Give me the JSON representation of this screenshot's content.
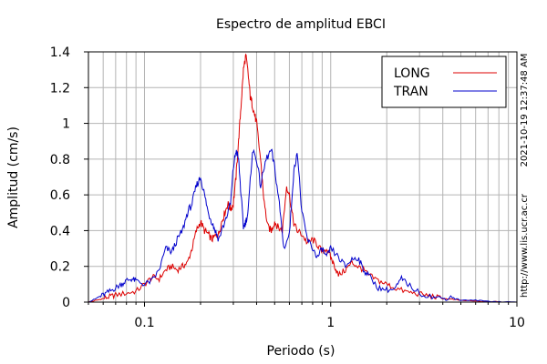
{
  "chart_data": {
    "type": "line",
    "title": "Espectro de amplitud EBCI",
    "xlabel": "Periodo (s)",
    "ylabel": "Amplitud (cm/s)",
    "x_scale": "log",
    "xlim": [
      0.05,
      10
    ],
    "ylim": [
      0,
      1.4
    ],
    "grid": true,
    "legend_position": "top-right",
    "x_tick_labels": [
      "0.1",
      "1",
      "10"
    ],
    "y_tick_labels": [
      "0",
      "0.2",
      "0.4",
      "0.6",
      "0.8",
      "1",
      "1.2",
      "1.4"
    ],
    "series": [
      {
        "name": "LONG",
        "color": "#dd0000",
        "x": [
          0.05,
          0.055,
          0.06,
          0.065,
          0.07,
          0.08,
          0.09,
          0.1,
          0.11,
          0.12,
          0.13,
          0.14,
          0.15,
          0.16,
          0.17,
          0.18,
          0.19,
          0.2,
          0.21,
          0.22,
          0.23,
          0.24,
          0.25,
          0.26,
          0.27,
          0.28,
          0.29,
          0.3,
          0.31,
          0.32,
          0.33,
          0.34,
          0.35,
          0.36,
          0.37,
          0.38,
          0.39,
          0.4,
          0.42,
          0.44,
          0.46,
          0.48,
          0.5,
          0.52,
          0.55,
          0.58,
          0.6,
          0.63,
          0.66,
          0.7,
          0.75,
          0.8,
          0.85,
          0.9,
          0.95,
          1.0,
          1.05,
          1.1,
          1.2,
          1.3,
          1.4,
          1.5,
          1.6,
          1.8,
          2.0,
          2.2,
          2.5,
          2.8,
          3.2,
          3.6,
          4.0,
          4.5,
          5.0,
          6.0,
          7.0,
          8.0,
          10.0
        ],
        "values": [
          0.0,
          0.01,
          0.02,
          0.03,
          0.04,
          0.05,
          0.06,
          0.1,
          0.14,
          0.13,
          0.18,
          0.2,
          0.18,
          0.2,
          0.22,
          0.3,
          0.4,
          0.45,
          0.4,
          0.38,
          0.35,
          0.37,
          0.38,
          0.45,
          0.5,
          0.55,
          0.52,
          0.55,
          0.7,
          0.9,
          1.1,
          1.3,
          1.38,
          1.28,
          1.15,
          1.1,
          1.05,
          1.0,
          0.8,
          0.55,
          0.42,
          0.4,
          0.45,
          0.42,
          0.4,
          0.65,
          0.6,
          0.45,
          0.4,
          0.38,
          0.33,
          0.35,
          0.32,
          0.28,
          0.3,
          0.25,
          0.2,
          0.15,
          0.18,
          0.22,
          0.2,
          0.18,
          0.15,
          0.12,
          0.1,
          0.08,
          0.06,
          0.05,
          0.04,
          0.03,
          0.02,
          0.015,
          0.01,
          0.005,
          0.003,
          0.002,
          0.0
        ]
      },
      {
        "name": "TRAN",
        "color": "#0000cc",
        "x": [
          0.05,
          0.055,
          0.06,
          0.065,
          0.07,
          0.075,
          0.08,
          0.085,
          0.09,
          0.1,
          0.11,
          0.12,
          0.13,
          0.14,
          0.15,
          0.16,
          0.17,
          0.18,
          0.19,
          0.2,
          0.21,
          0.22,
          0.23,
          0.24,
          0.25,
          0.27,
          0.29,
          0.3,
          0.31,
          0.32,
          0.33,
          0.34,
          0.35,
          0.36,
          0.38,
          0.4,
          0.42,
          0.45,
          0.48,
          0.5,
          0.53,
          0.56,
          0.6,
          0.63,
          0.66,
          0.7,
          0.75,
          0.8,
          0.85,
          0.9,
          0.95,
          1.0,
          1.1,
          1.2,
          1.3,
          1.4,
          1.5,
          1.6,
          1.8,
          2.0,
          2.2,
          2.4,
          2.6,
          3.0,
          3.5,
          4.0,
          4.5,
          5.0,
          6.0,
          7.0,
          8.0,
          10.0
        ],
        "values": [
          0.0,
          0.02,
          0.04,
          0.06,
          0.08,
          0.1,
          0.12,
          0.13,
          0.12,
          0.1,
          0.12,
          0.18,
          0.3,
          0.28,
          0.35,
          0.4,
          0.5,
          0.55,
          0.65,
          0.7,
          0.6,
          0.5,
          0.45,
          0.4,
          0.35,
          0.45,
          0.55,
          0.75,
          0.85,
          0.8,
          0.6,
          0.42,
          0.45,
          0.5,
          0.85,
          0.8,
          0.65,
          0.8,
          0.85,
          0.75,
          0.55,
          0.3,
          0.38,
          0.7,
          0.85,
          0.5,
          0.35,
          0.3,
          0.25,
          0.3,
          0.25,
          0.3,
          0.25,
          0.2,
          0.24,
          0.25,
          0.18,
          0.15,
          0.08,
          0.07,
          0.07,
          0.13,
          0.1,
          0.05,
          0.03,
          0.02,
          0.03,
          0.01,
          0.01,
          0.005,
          0.002,
          0.0
        ]
      }
    ]
  },
  "side_text": {
    "timestamp": "2021-10-19 12:37:48 AM",
    "url": "http://www.lis.ucr.ac.cr"
  }
}
